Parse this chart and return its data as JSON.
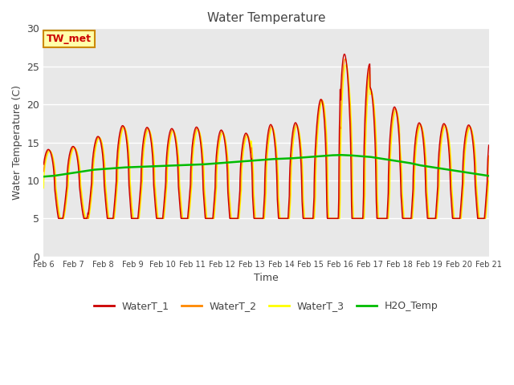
{
  "title": "Water Temperature",
  "ylabel": "Water Temperature (C)",
  "xlabel": "Time",
  "ylim": [
    0,
    30
  ],
  "label_TW_met": "TW_met",
  "bg_color": "#e8e8e8",
  "fig_bg": "#ffffff",
  "legend_entries": [
    "WaterT_1",
    "WaterT_2",
    "WaterT_3",
    "H2O_Temp"
  ],
  "colors": {
    "WaterT_1": "#cc0000",
    "WaterT_2": "#ff8800",
    "WaterT_3": "#ffff00",
    "H2O_Temp": "#00bb00"
  },
  "linewidths": {
    "WaterT_1": 1.0,
    "WaterT_2": 1.0,
    "WaterT_3": 1.0,
    "H2O_Temp": 1.8
  },
  "xtick_labels": [
    "Feb 6",
    "Feb 7",
    "Feb 8",
    "Feb 9",
    "Feb 10",
    "Feb 11",
    "Feb 12",
    "Feb 13",
    "Feb 14",
    "Feb 15",
    "Feb 16",
    "Feb 17",
    "Feb 18",
    "Feb 19",
    "Feb 20",
    "Feb 21"
  ],
  "xtick_positions": [
    6,
    7,
    8,
    9,
    10,
    11,
    12,
    13,
    14,
    15,
    16,
    17,
    18,
    19,
    20,
    21
  ],
  "h2o_vals": [
    10.5,
    10.6,
    10.8,
    11.0,
    11.2,
    11.4,
    11.5,
    11.6,
    11.7,
    11.75,
    11.8,
    11.85,
    11.9,
    11.95,
    12.0,
    12.05,
    12.1,
    12.2,
    12.3,
    12.4,
    12.5,
    12.6,
    12.7,
    12.8,
    12.85,
    12.9,
    13.0,
    13.1,
    13.2,
    13.3,
    13.35,
    13.3,
    13.2,
    13.1,
    12.9,
    12.7,
    12.5,
    12.3,
    12.0,
    11.8,
    11.6,
    11.4,
    11.2,
    11.0,
    10.8,
    10.6
  ]
}
